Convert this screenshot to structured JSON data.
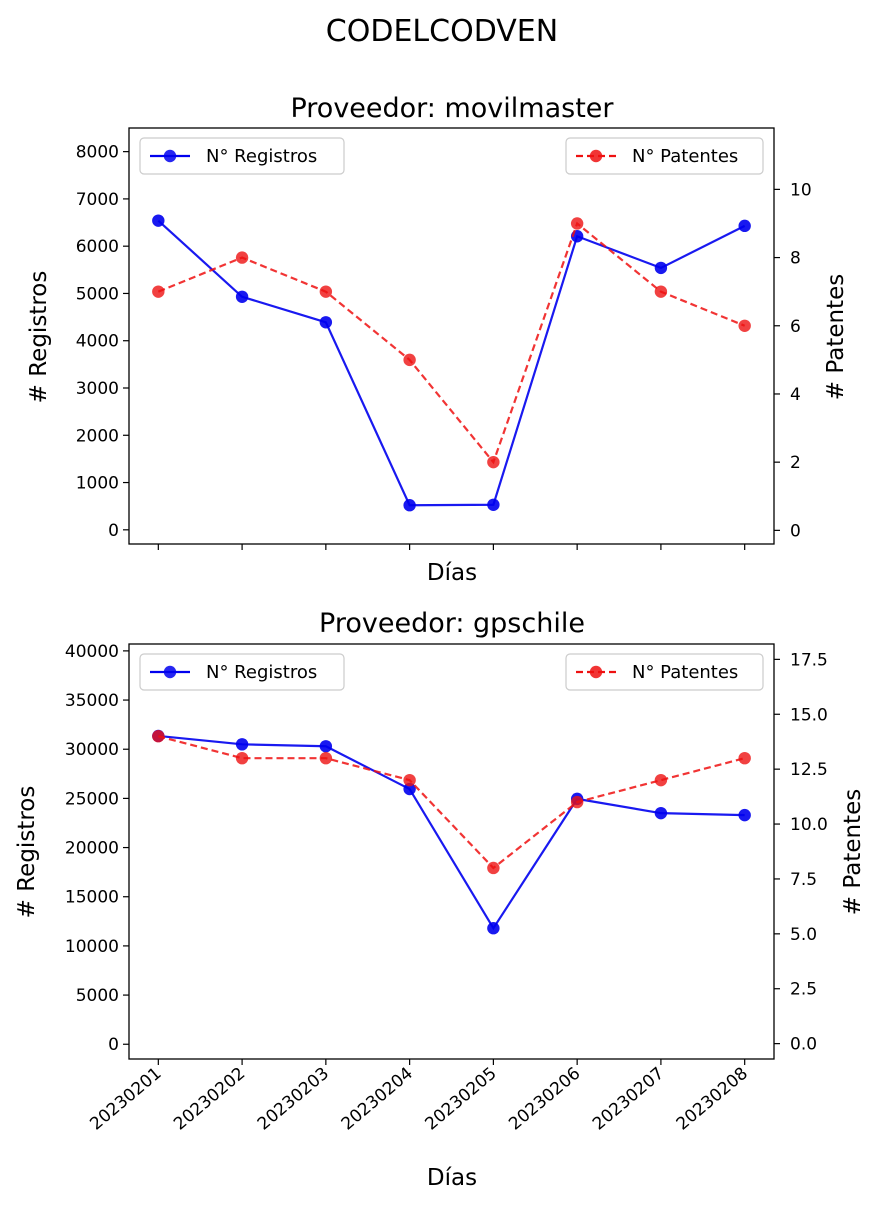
{
  "suptitle": "CODELCODVEN",
  "legend": {
    "registros": "N° Registros",
    "patentes": "N° Patentes"
  },
  "colors": {
    "registros": "#0000ee",
    "patentes": "#ee1111"
  },
  "chart_data": [
    {
      "type": "line",
      "title": "Proveedor: movilmaster",
      "xlabel": "Días",
      "ylabel": "# Registros",
      "ylabel_right": "# Patentes",
      "categories": [
        "20230201",
        "20230202",
        "20230203",
        "20230204",
        "20230205",
        "20230206",
        "20230207",
        "20230208"
      ],
      "show_xticklabels": false,
      "ylim": [
        -300,
        8500
      ],
      "yticks": [
        0,
        1000,
        2000,
        3000,
        4000,
        5000,
        6000,
        7000,
        8000
      ],
      "ylim_right": [
        -0.4,
        11.8
      ],
      "yticks_right": [
        0,
        2,
        4,
        6,
        8,
        10
      ],
      "series": [
        {
          "name": "N° Registros",
          "axis": "left",
          "style": "solid",
          "values": [
            6540,
            4930,
            4390,
            520,
            530,
            6210,
            5540,
            6430
          ]
        },
        {
          "name": "N° Patentes",
          "axis": "right",
          "style": "dashed",
          "values": [
            7,
            8,
            7,
            5,
            2,
            9,
            7,
            6
          ]
        }
      ],
      "legend": [
        "upper left",
        "upper right"
      ]
    },
    {
      "type": "line",
      "title": "Proveedor: gpschile",
      "xlabel": "Días",
      "ylabel": "# Registros",
      "ylabel_right": "# Patentes",
      "categories": [
        "20230201",
        "20230202",
        "20230203",
        "20230204",
        "20230205",
        "20230206",
        "20230207",
        "20230208"
      ],
      "show_xticklabels": true,
      "ylim": [
        -1500,
        40700
      ],
      "yticks": [
        0,
        5000,
        10000,
        15000,
        20000,
        25000,
        30000,
        35000,
        40000
      ],
      "ylim_right": [
        -0.7,
        18.2
      ],
      "yticks_right": [
        "0.0",
        "2.5",
        "5.0",
        "7.5",
        "10.0",
        "12.5",
        "15.0",
        "17.5"
      ],
      "series": [
        {
          "name": "N° Registros",
          "axis": "left",
          "style": "solid",
          "values": [
            31350,
            30500,
            30300,
            25950,
            11800,
            24950,
            23500,
            23300
          ]
        },
        {
          "name": "N° Patentes",
          "axis": "right",
          "style": "dashed",
          "values": [
            14,
            13,
            13,
            12,
            8,
            11,
            12,
            13
          ]
        }
      ],
      "legend": [
        "upper left",
        "upper right"
      ]
    }
  ]
}
